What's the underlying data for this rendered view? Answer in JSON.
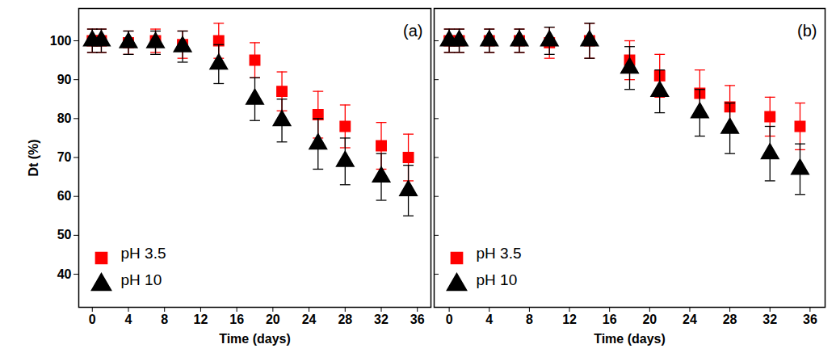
{
  "chart_data": [
    {
      "type": "scatter",
      "title": "(a)",
      "x_label": "Time (days)",
      "y_label": "Dt (%)",
      "x": [
        0,
        1,
        4,
        7,
        10,
        14,
        18,
        21,
        25,
        28,
        32,
        35
      ],
      "xlim": [
        -1.5,
        37.5
      ],
      "xticks": [
        0,
        4,
        8,
        12,
        16,
        20,
        24,
        28,
        32,
        36
      ],
      "ylim": [
        31.5,
        108.3
      ],
      "yticks": [
        40,
        50,
        60,
        70,
        80,
        90,
        100
      ],
      "legend": "lower left",
      "grid": false,
      "series": [
        {
          "name": "pH 3.5",
          "color": "#ff0000",
          "marker": "square",
          "values": [
            100,
            100,
            99.5,
            100,
            99,
            100,
            95,
            87,
            81,
            78,
            73,
            70
          ],
          "errors": [
            3,
            3,
            3,
            3,
            3.5,
            4.5,
            4.5,
            5,
            6,
            5.5,
            6,
            6
          ]
        },
        {
          "name": "pH 10",
          "color": "#000000",
          "marker": "triangle",
          "values": [
            100,
            100,
            99.5,
            99.5,
            98.5,
            94,
            85,
            79.5,
            73.5,
            69,
            65,
            61.5
          ],
          "errors": [
            3,
            3,
            3,
            3,
            4,
            5,
            5.5,
            5.5,
            6.5,
            6,
            6,
            6.5
          ]
        }
      ]
    },
    {
      "type": "scatter",
      "title": "(b)",
      "x_label": "Time (days)",
      "x": [
        0,
        1,
        4,
        7,
        10,
        14,
        18,
        21,
        25,
        28,
        32,
        35
      ],
      "xlim": [
        -1.5,
        37.5
      ],
      "xticks": [
        0,
        4,
        8,
        12,
        16,
        20,
        24,
        28,
        32,
        36
      ],
      "ylim": [
        31.5,
        108.3
      ],
      "yticks": [
        40,
        50,
        60,
        70,
        80,
        90,
        100
      ],
      "legend": "lower left",
      "grid": false,
      "tick_labels": "x",
      "series": [
        {
          "name": "pH 3.5",
          "color": "#ff0000",
          "marker": "square",
          "values": [
            100,
            100,
            100,
            100,
            99.5,
            100,
            95,
            91,
            86.5,
            83,
            80.5,
            78
          ],
          "errors": [
            3,
            3,
            3,
            3,
            4,
            4.5,
            5,
            5.5,
            6,
            5.5,
            5,
            6
          ]
        },
        {
          "name": "pH 10",
          "color": "#000000",
          "marker": "triangle",
          "values": [
            100,
            100,
            100,
            100,
            100,
            100,
            93,
            87,
            81.5,
            77.5,
            71,
            67
          ],
          "errors": [
            3,
            3,
            3,
            3,
            3.5,
            4.5,
            5.5,
            5.5,
            6,
            6.5,
            7,
            6.5
          ]
        }
      ]
    }
  ]
}
